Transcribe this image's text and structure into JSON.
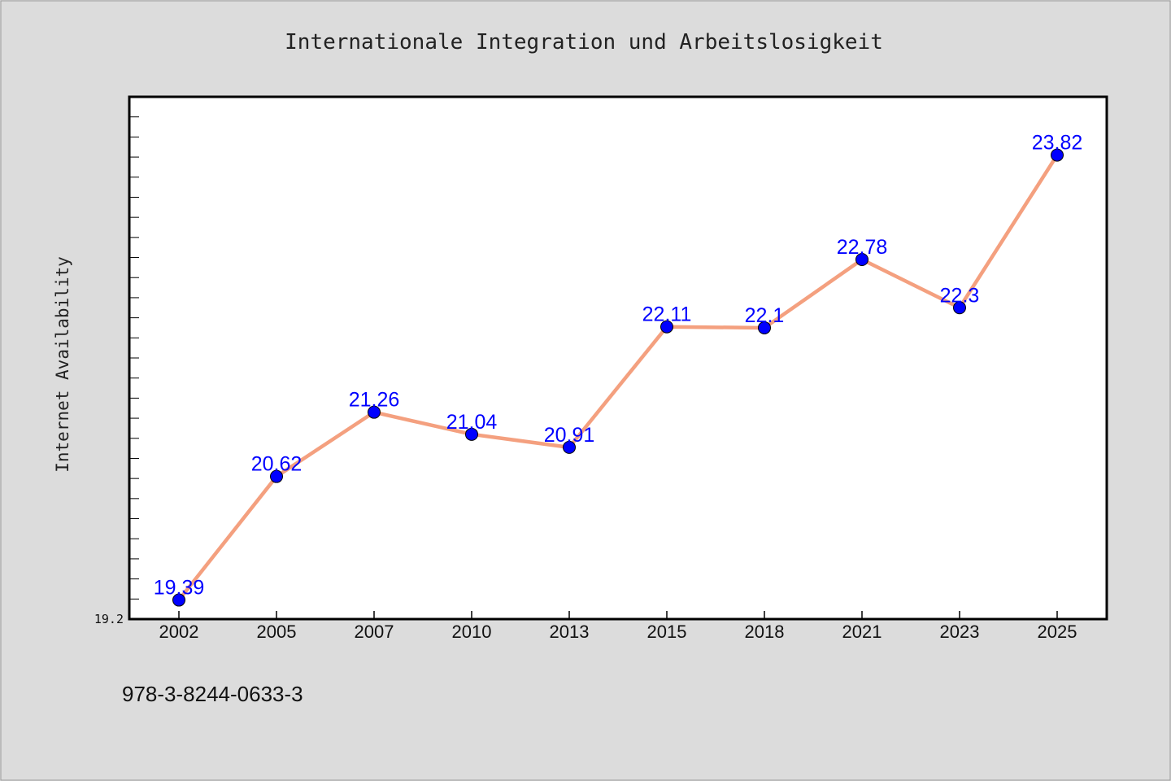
{
  "footnote": "978-3-8244-0633-3",
  "colors": {
    "background": "#dcdcdc",
    "plot_background": "#ffffff",
    "line": "#f4a07f",
    "marker": "#0000ff",
    "data_label": "#0000ff"
  },
  "chart_data": {
    "type": "line",
    "title": "Internationale Integration und Arbeitslosigkeit",
    "xlabel": "",
    "ylabel": "Internet Availability",
    "categories": [
      "2002",
      "2005",
      "2007",
      "2010",
      "2013",
      "2015",
      "2018",
      "2021",
      "2023",
      "2025"
    ],
    "series": [
      {
        "values": [
          19.39,
          20.62,
          21.26,
          21.04,
          20.91,
          22.11,
          22.1,
          22.78,
          22.3,
          23.82
        ],
        "labels": [
          "19.39",
          "20.62",
          "21.26",
          "21.04",
          "20.91",
          "22.11",
          "22.1",
          "22.78",
          "22.3",
          "23.82"
        ]
      }
    ],
    "ylim": [
      19.2,
      24.4
    ],
    "yticks": [
      "19.2"
    ],
    "grid": false,
    "legend": "none",
    "markers": "filled circles",
    "data_labels": true
  }
}
